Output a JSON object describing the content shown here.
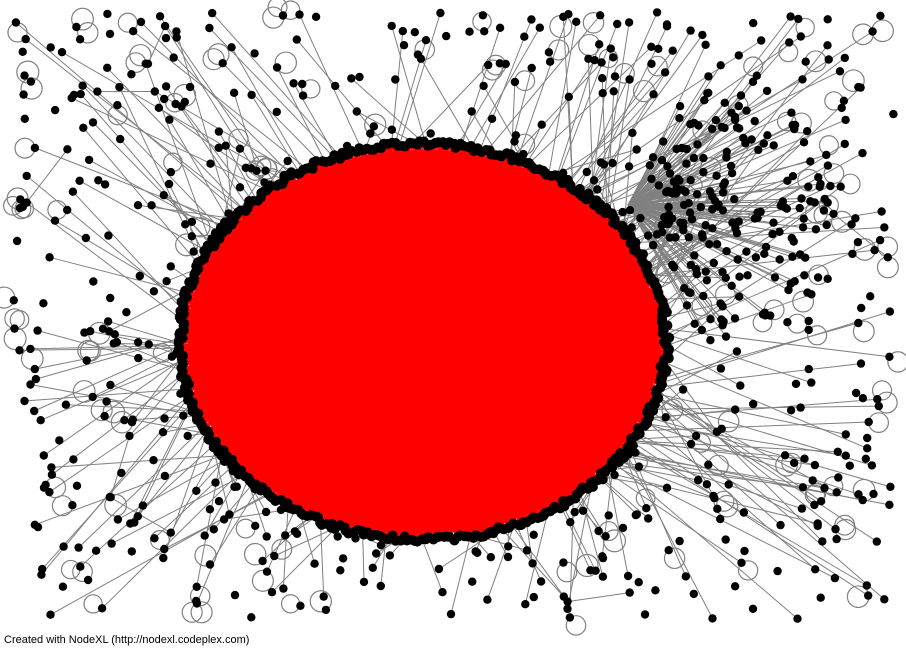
{
  "credit": "Created with NodeXL (http://nodexl.codeplex.com)",
  "colors": {
    "background": "#ffffff",
    "hub_edge": "#ff0000",
    "edge": "#808080",
    "node_fill": "#000000",
    "loop": "#808080"
  }
}
